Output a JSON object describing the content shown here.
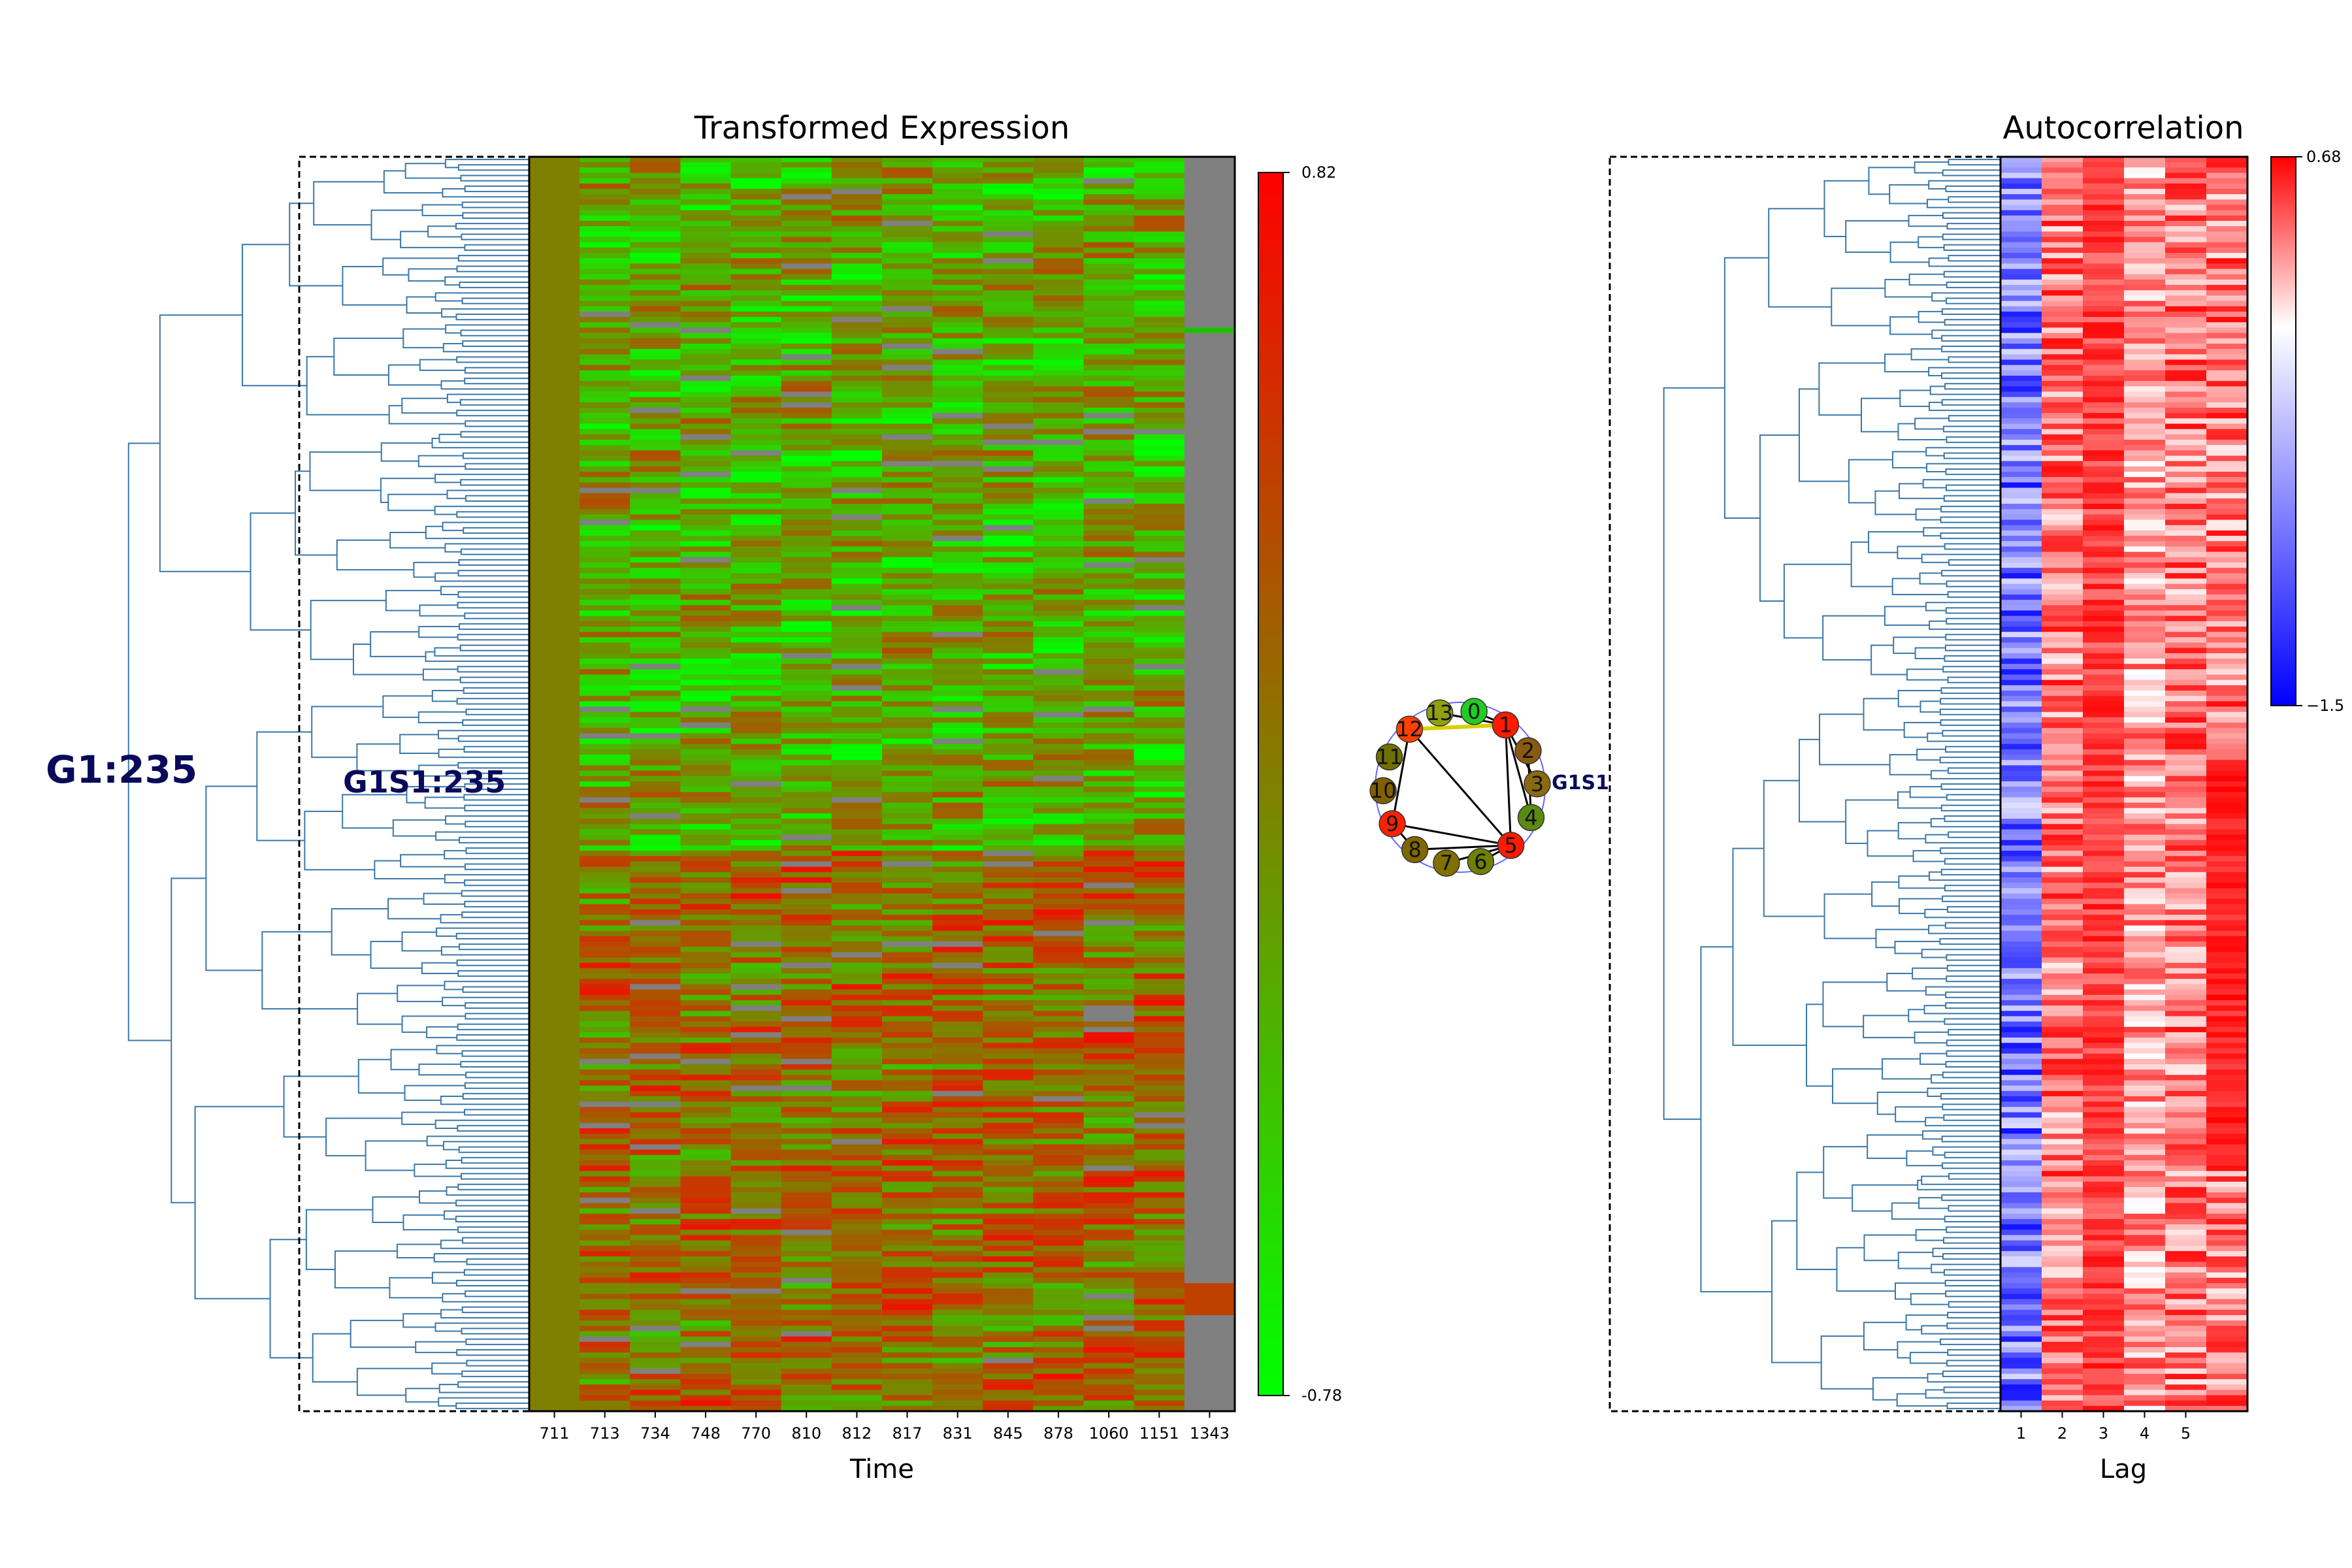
{
  "chart_data": [
    {
      "type": "heatmap",
      "title": "Transformed Expression",
      "xlabel": "Time",
      "ylabel": "",
      "x": [
        "711",
        "713",
        "734",
        "748",
        "770",
        "810",
        "812",
        "817",
        "831",
        "845",
        "878",
        "1060",
        "1151",
        "1343"
      ],
      "rows": 235,
      "colorbar": {
        "min": "-0.78",
        "max": "0.82",
        "min_value": -0.78,
        "max_value": 0.82,
        "colors": [
          "#00ff00",
          "#808000",
          "#ff0000"
        ],
        "missing_color": "#808080"
      },
      "cluster_labels": [
        "G1:235",
        "G1S1:235"
      ],
      "row_dendrogram": true
    },
    {
      "type": "diagram",
      "nodes": [
        "0",
        "1",
        "2",
        "3",
        "4",
        "5",
        "6",
        "7",
        "8",
        "9",
        "10",
        "11",
        "12",
        "13"
      ],
      "label": "G1S1"
    },
    {
      "type": "heatmap",
      "title": "Autocorrelation",
      "xlabel": "Lag",
      "ylabel": "",
      "x": [
        "1",
        "2",
        "3",
        "4",
        "5"
      ],
      "rows": 235,
      "colorbar": {
        "min": "−1.5",
        "max": "0.68",
        "min_value": -1.5,
        "max_value": 0.68,
        "colors": [
          "#0000ff",
          "#ffffff",
          "#ff0000"
        ]
      },
      "row_dendrogram": true
    }
  ]
}
